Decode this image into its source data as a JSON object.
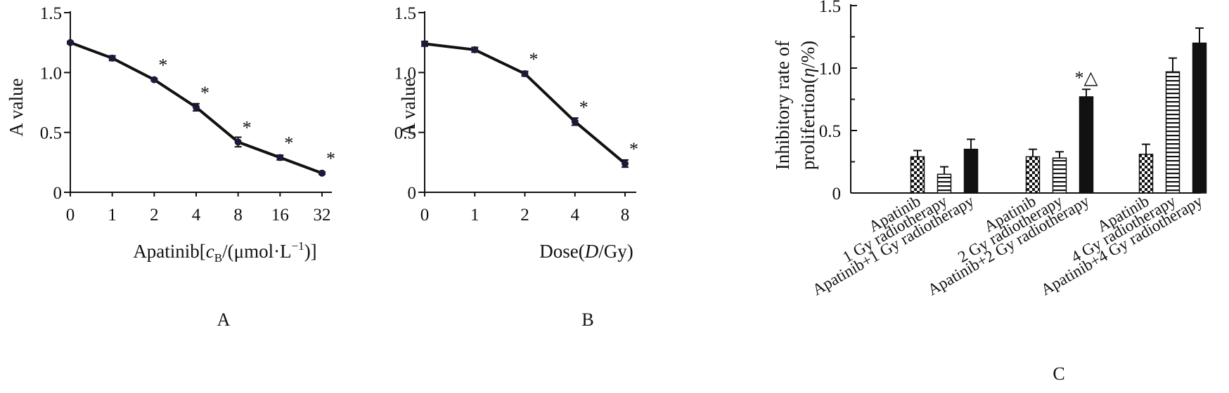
{
  "chart_data": [
    {
      "type": "line",
      "panel": "A",
      "xlabel_prefix": "Apatinib[",
      "xlabel_var": "c",
      "xlabel_var_sub": "B",
      "xlabel_mid": "/(μmol·L",
      "xlabel_sup": "−1",
      "xlabel_suffix": ")]",
      "ylabel": "A value",
      "x": [
        "0",
        "1",
        "2",
        "4",
        "8",
        "16",
        "32"
      ],
      "y": [
        1.25,
        1.12,
        0.94,
        0.71,
        0.42,
        0.29,
        0.16
      ],
      "error": [
        0.01,
        0.02,
        0.01,
        0.03,
        0.04,
        0.02,
        0.01
      ],
      "markers": [
        "",
        "",
        "*",
        "*",
        "*",
        "*",
        "*"
      ],
      "yticks": [
        "0",
        "0.5",
        "1.0",
        "1.5"
      ],
      "ylim": [
        0,
        1.5
      ]
    },
    {
      "type": "line",
      "panel": "B",
      "xlabel_prefix": "Dose(",
      "xlabel_var": "D",
      "xlabel_suffix": "/Gy)",
      "ylabel": "A value",
      "x": [
        "0",
        "1",
        "2",
        "4",
        "8"
      ],
      "y": [
        1.24,
        1.19,
        0.99,
        0.59,
        0.24
      ],
      "error": [
        0.02,
        0.02,
        0.02,
        0.03,
        0.03
      ],
      "markers": [
        "",
        "",
        "*",
        "*",
        "*"
      ],
      "yticks": [
        "0",
        "0.5",
        "1.0",
        "1.5"
      ],
      "ylim": [
        0,
        1.5
      ]
    },
    {
      "type": "bar",
      "panel": "C",
      "ylabel_line1": "Inhibitory rate of",
      "ylabel_line2_prefix": "prolifertion(",
      "ylabel_line2_var": "η",
      "ylabel_line2_suffix": "/%)",
      "yticks": [
        "0",
        "0.5",
        "1.0",
        "1.5"
      ],
      "ylim": [
        0,
        1.5
      ],
      "groups": [
        {
          "bars": [
            {
              "label": "Apatinib",
              "value": 0.29,
              "error": 0.05,
              "pattern": "checker",
              "marker": ""
            },
            {
              "label": "1 Gy radiotherapy",
              "value": 0.15,
              "error": 0.06,
              "pattern": "hlines",
              "marker": ""
            },
            {
              "label": "Apatinib+1 Gy radiotherapy",
              "value": 0.35,
              "error": 0.08,
              "pattern": "solid",
              "marker": ""
            }
          ]
        },
        {
          "bars": [
            {
              "label": "Apatinib",
              "value": 0.29,
              "error": 0.06,
              "pattern": "checker",
              "marker": ""
            },
            {
              "label": "2 Gy radiotherapy",
              "value": 0.28,
              "error": 0.05,
              "pattern": "hlines",
              "marker": ""
            },
            {
              "label": "Apatinib+2 Gy radiotherapy",
              "value": 0.77,
              "error": 0.06,
              "pattern": "solid",
              "marker": "*△"
            }
          ]
        },
        {
          "bars": [
            {
              "label": "Apatinib",
              "value": 0.31,
              "error": 0.08,
              "pattern": "checker",
              "marker": ""
            },
            {
              "label": "4 Gy radiotherapy",
              "value": 0.97,
              "error": 0.11,
              "pattern": "hlines",
              "marker": ""
            },
            {
              "label": "Apatinib+4 Gy radiotherapy",
              "value": 1.2,
              "error": 0.12,
              "pattern": "solid",
              "marker": ""
            }
          ]
        }
      ]
    }
  ]
}
